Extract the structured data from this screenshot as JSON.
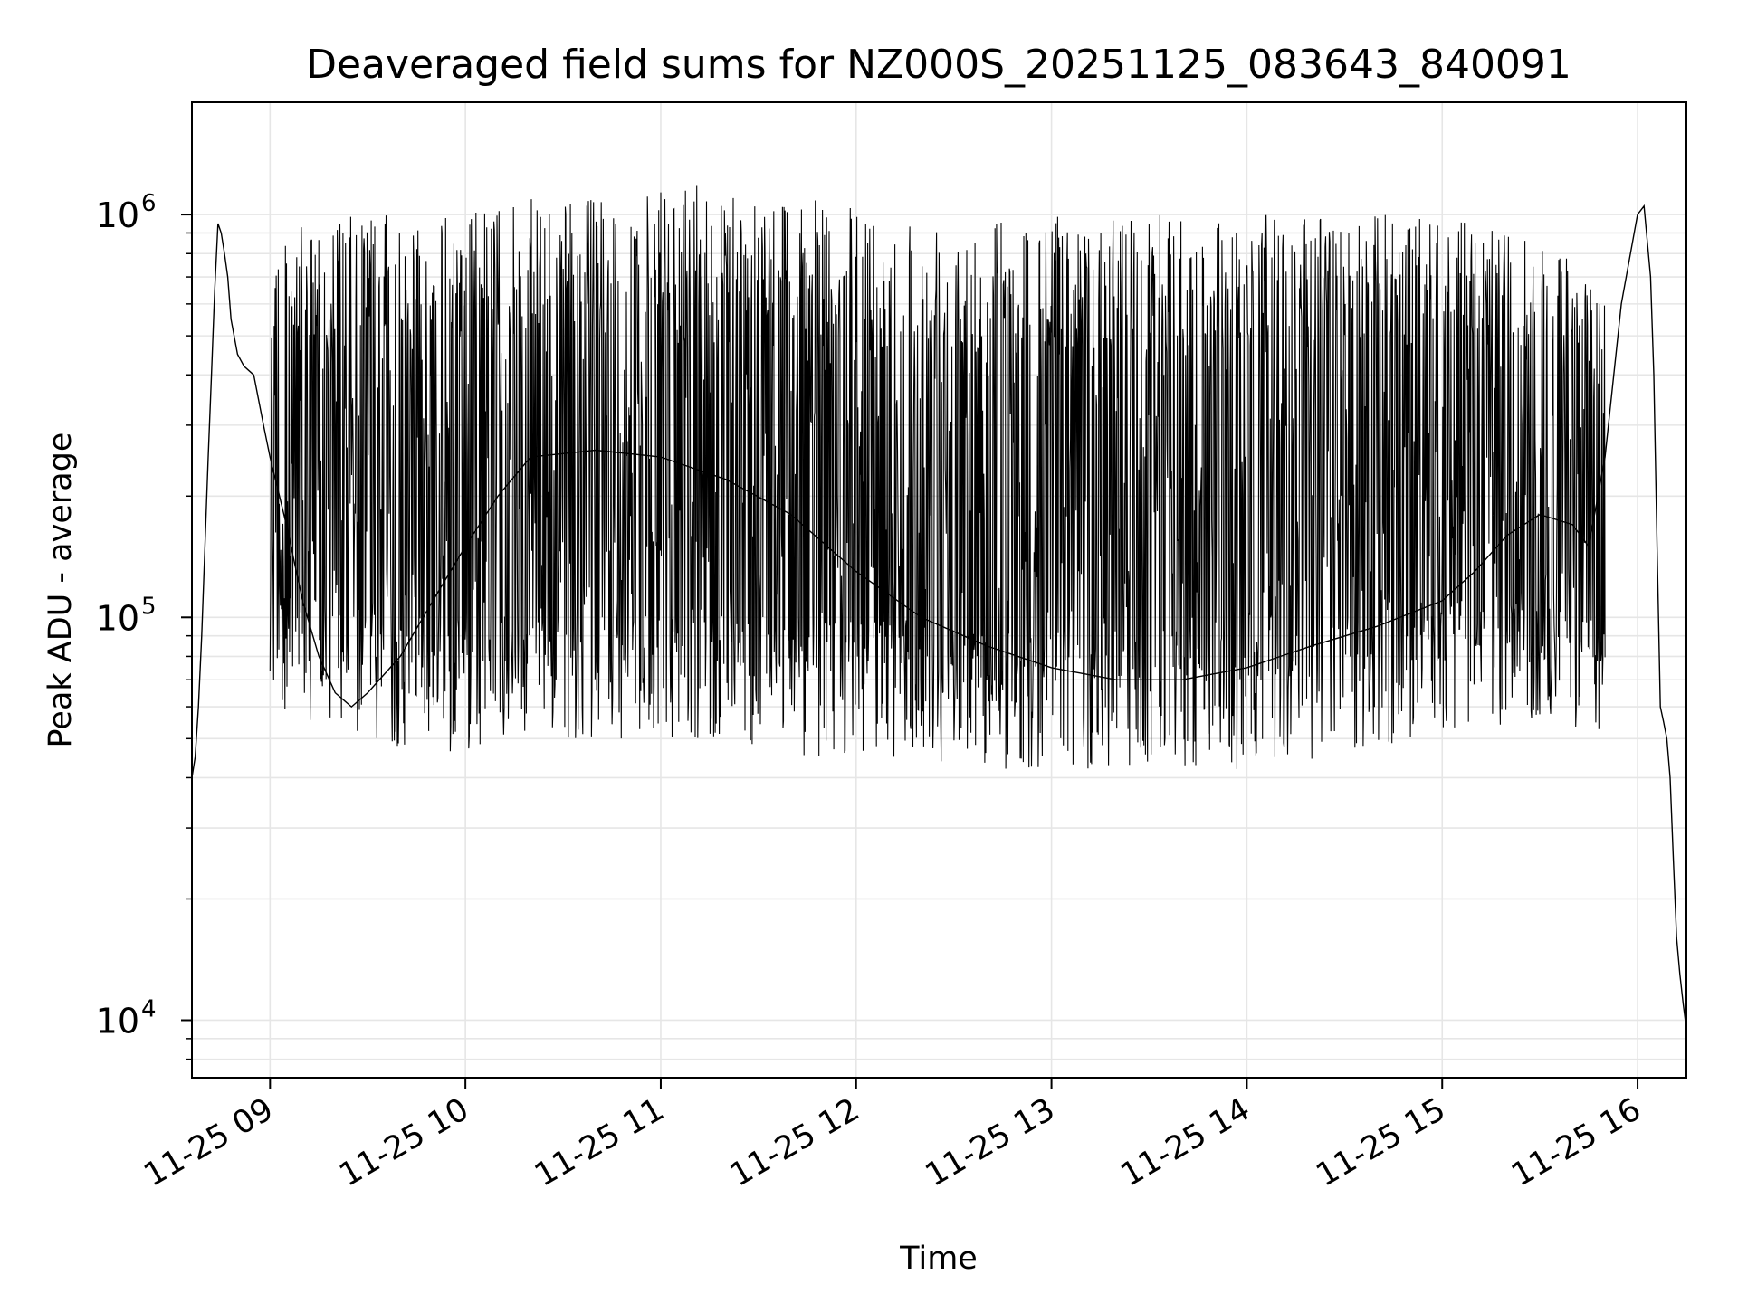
{
  "chart_data": {
    "type": "line",
    "title": "Deaveraged field sums for NZ000S_20251125_083643_840091",
    "xlabel": "Time",
    "ylabel": "Peak ADU - average",
    "yscale": "log",
    "grid": true,
    "line_color": "#000000",
    "grid_color": "#e6e6e6",
    "xlim": [
      "2025-11-25 08:36",
      "2025-11-25 16:15"
    ],
    "ylim": [
      7200,
      1900000
    ],
    "xticks": [
      {
        "value": "2025-11-25 09:00",
        "label": "11-25 09"
      },
      {
        "value": "2025-11-25 10:00",
        "label": "11-25 10"
      },
      {
        "value": "2025-11-25 11:00",
        "label": "11-25 11"
      },
      {
        "value": "2025-11-25 12:00",
        "label": "11-25 12"
      },
      {
        "value": "2025-11-25 13:00",
        "label": "11-25 13"
      },
      {
        "value": "2025-11-25 14:00",
        "label": "11-25 14"
      },
      {
        "value": "2025-11-25 15:00",
        "label": "11-25 15"
      },
      {
        "value": "2025-11-25 16:00",
        "label": "11-25 16"
      }
    ],
    "yticks": [
      {
        "value": 10000,
        "base": "10",
        "exp": "4"
      },
      {
        "value": 100000,
        "base": "10",
        "exp": "5"
      },
      {
        "value": 1000000,
        "base": "10",
        "exp": "6"
      }
    ],
    "series": [
      {
        "x": [
          "2025-11-25 08:36",
          "2025-11-25 08:37",
          "2025-11-25 08:38",
          "2025-11-25 08:39",
          "2025-11-25 08:40",
          "2025-11-25 08:41",
          "2025-11-25 08:42",
          "2025-11-25 08:43",
          "2025-11-25 08:44",
          "2025-11-25 08:45",
          "2025-11-25 08:46",
          "2025-11-25 08:47",
          "2025-11-25 08:48",
          "2025-11-25 08:50",
          "2025-11-25 08:52",
          "2025-11-25 08:55",
          "2025-11-25 08:58",
          "2025-11-25 09:00",
          "2025-11-25 09:05",
          "2025-11-25 09:10",
          "2025-11-25 09:15",
          "2025-11-25 09:20",
          "2025-11-25 09:25",
          "2025-11-25 09:30",
          "2025-11-25 09:40",
          "2025-11-25 09:50",
          "2025-11-25 10:00",
          "2025-11-25 10:10",
          "2025-11-25 10:20",
          "2025-11-25 10:40",
          "2025-11-25 11:00",
          "2025-11-25 11:20",
          "2025-11-25 11:40",
          "2025-11-25 12:00",
          "2025-11-25 12:20",
          "2025-11-25 12:40",
          "2025-11-25 13:00",
          "2025-11-25 13:20",
          "2025-11-25 13:40",
          "2025-11-25 14:00",
          "2025-11-25 14:20",
          "2025-11-25 14:40",
          "2025-11-25 15:00",
          "2025-11-25 15:10",
          "2025-11-25 15:20",
          "2025-11-25 15:30",
          "2025-11-25 15:40",
          "2025-11-25 15:45",
          "2025-11-25 15:50",
          "2025-11-25 15:55",
          "2025-11-25 16:00",
          "2025-11-25 16:02",
          "2025-11-25 16:04",
          "2025-11-25 16:05",
          "2025-11-25 16:06",
          "2025-11-25 16:07",
          "2025-11-25 16:08",
          "2025-11-25 16:09",
          "2025-11-25 16:10",
          "2025-11-25 16:11",
          "2025-11-25 16:12",
          "2025-11-25 16:13",
          "2025-11-25 16:14",
          "2025-11-25 16:15"
        ],
        "y": [
          40000,
          45000,
          60000,
          90000,
          150000,
          250000,
          400000,
          650000,
          950000,
          900000,
          800000,
          700000,
          550000,
          450000,
          420000,
          400000,
          300000,
          250000,
          170000,
          110000,
          80000,
          65000,
          60000,
          65000,
          80000,
          110000,
          150000,
          200000,
          250000,
          260000,
          250000,
          220000,
          180000,
          130000,
          100000,
          85000,
          75000,
          70000,
          70000,
          75000,
          85000,
          95000,
          110000,
          130000,
          160000,
          180000,
          170000,
          150000,
          250000,
          600000,
          1000000,
          1050000,
          700000,
          400000,
          150000,
          60000,
          55000,
          50000,
          40000,
          25000,
          16000,
          13000,
          11000,
          9500
        ]
      }
    ],
    "spike_band": {
      "x_start": "2025-11-25 09:00",
      "x_end": "2025-11-25 15:50",
      "lower_envelope": [
        60000,
        50000,
        45000,
        50000,
        50000,
        50000,
        45000,
        45000,
        42000,
        42000,
        42000,
        42000,
        45000,
        50000,
        55000,
        50000
      ],
      "upper_envelope": [
        900000,
        1000000,
        1000000,
        1100000,
        1100000,
        1200000,
        1100000,
        1000000,
        1000000,
        1000000,
        1000000,
        1000000,
        1000000,
        1000000,
        900000,
        700000
      ]
    }
  }
}
